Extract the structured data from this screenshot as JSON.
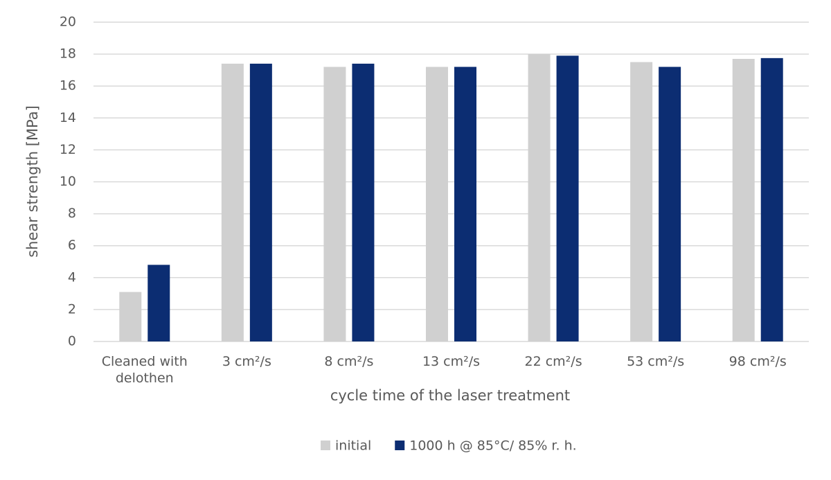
{
  "chart_data": {
    "type": "bar",
    "x_label": "cycle time of the laser treatment",
    "y_label": "shear strength [MPa]",
    "categories": [
      "Cleaned with delothen",
      "3 cm²/s",
      "8 cm²/s",
      "13 cm²/s",
      "22 cm²/s",
      "53 cm²/s",
      "98 cm²/s"
    ],
    "series": [
      {
        "name": "initial",
        "color": "#d0d0d0",
        "values": [
          3.1,
          17.4,
          17.2,
          17.2,
          18.0,
          17.5,
          17.7
        ]
      },
      {
        "name": "1000 h @ 85°C/ 85% r. h.",
        "color": "#0c2d72",
        "values": [
          4.8,
          17.4,
          17.4,
          17.2,
          17.9,
          17.2,
          17.75
        ]
      }
    ],
    "ylim": [
      0,
      20
    ],
    "yticks": [
      0,
      2,
      4,
      6,
      8,
      10,
      12,
      14,
      16,
      18,
      20
    ],
    "grid": true,
    "legend": "bottom"
  }
}
